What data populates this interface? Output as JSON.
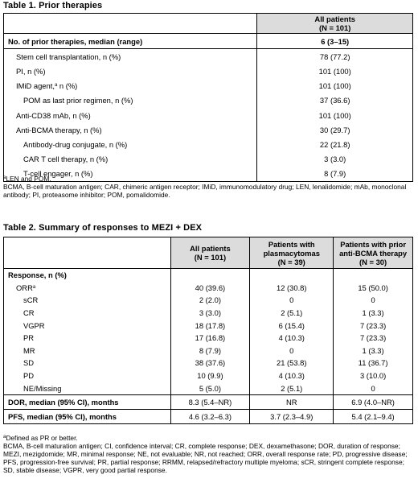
{
  "table1": {
    "title": "Table 1. Prior therapies",
    "header": [
      "All patients",
      "(N = 101)"
    ],
    "rows": [
      {
        "label": "No. of prior therapies, median (range)",
        "value": "6 (3–15)"
      },
      {
        "label": "Stem cell transplantation, n (%)",
        "value": "78 (77.2)"
      },
      {
        "label": "PI, n (%)",
        "value": "101 (100)"
      },
      {
        "label": "IMiD agent,",
        "sup": "a",
        "label_suffix": " n (%)",
        "value": "101 (100)"
      },
      {
        "label": "POM as last prior regimen, n (%)",
        "value": "37 (36.6)"
      },
      {
        "label": "Anti-CD38 mAb, n (%)",
        "value": "101 (100)"
      },
      {
        "label": "Anti-BCMA therapy, n (%)",
        "value": "30 (29.7)"
      },
      {
        "label": "Antibody-drug conjugate, n (%)",
        "value": "22 (21.8)"
      },
      {
        "label": "CAR T cell therapy, n (%)",
        "value": "3 (3.0)"
      },
      {
        "label": "T-cell engager, n (%)",
        "value": "8 (7.9)"
      }
    ],
    "footnote_sup": "a",
    "footnote": "LEN and POM.",
    "abbreviations": "BCMA, B-cell maturation antigen; CAR, chimeric antigen receptor; IMiD, immunomodulatory drug; LEN, lenalidomide; mAb, monoclonal antibody; PI, proteasome inhibitor; POM, pomalidomide."
  },
  "table2": {
    "title": "Table 2. Summary of responses to MEZI + DEX",
    "header": [
      [
        "All patients",
        "(N = 101)"
      ],
      [
        "Patients with",
        "plasmacytomas",
        "(N = 39)"
      ],
      [
        "Patients with prior",
        "anti-BCMA therapy",
        "(N = 30)"
      ]
    ],
    "section_label": "Response, n (%)",
    "rows": [
      {
        "label": "ORR",
        "sup": "a",
        "values": [
          "40 (39.6)",
          "12 (30.8)",
          "15 (50.0)"
        ]
      },
      {
        "label": "sCR",
        "values": [
          "2 (2.0)",
          "0",
          "0"
        ]
      },
      {
        "label": "CR",
        "values": [
          "3 (3.0)",
          "2 (5.1)",
          "1 (3.3)"
        ]
      },
      {
        "label": "VGPR",
        "values": [
          "18 (17.8)",
          "6 (15.4)",
          "7 (23.3)"
        ]
      },
      {
        "label": "PR",
        "values": [
          "17 (16.8)",
          "4 (10.3)",
          "7 (23.3)"
        ]
      },
      {
        "label": "MR",
        "values": [
          "8 (7.9)",
          "0",
          "1 (3.3)"
        ]
      },
      {
        "label": "SD",
        "values": [
          "38 (37.6)",
          "21 (53.8)",
          "11 (36.7)"
        ]
      },
      {
        "label": "PD",
        "values": [
          "10 (9.9)",
          "4 (10.3)",
          "3 (10.0)"
        ]
      },
      {
        "label": "NE/Missing",
        "values": [
          "5 (5.0)",
          "2 (5.1)",
          "0"
        ]
      }
    ],
    "dor": {
      "label": "DOR, median (95% CI), months",
      "values": [
        "8.3 (5.4–NR)",
        "NR",
        "6.9 (4.0–NR)"
      ]
    },
    "pfs": {
      "label": "PFS, median (95% CI), months",
      "values": [
        "4.6 (3.2–6.3)",
        "3.7 (2.3–4.9)",
        "5.4 (2.1–9.4)"
      ]
    },
    "footnote_sup": "a",
    "footnote": "Defined as PR or better.",
    "abbreviations": "BCMA, B-cell maturation antigen; CI, confidence interval; CR, complete response; DEX, dexamethasone; DOR, duration of response; MEZI, mezigdomide; MR, minimal response; NE, not evaluable; NR, not reached; ORR, overall response rate; PD, progressive disease; PFS, progression-free survival; PR, partial response; RRMM, relapsed/refractory multiple myeloma; sCR, stringent complete response; SD, stable disease; VGPR, very good partial response."
  }
}
